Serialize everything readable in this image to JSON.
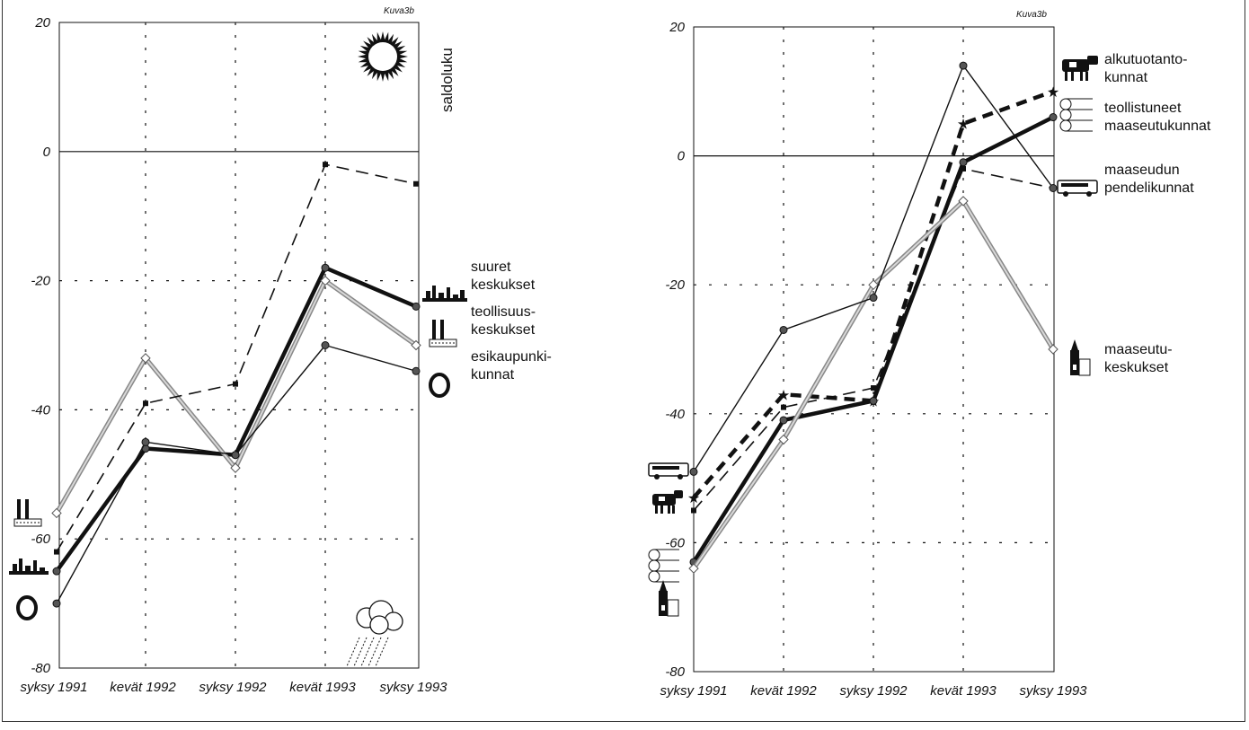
{
  "chart_data": [
    {
      "type": "line",
      "figure_tag": "Kuva3b",
      "ylabel": "saldoluku",
      "categories": [
        "syksy 1991",
        "kevät 1992",
        "syksy 1992",
        "kevät 1993",
        "syksy 1993"
      ],
      "ylim": [
        -80,
        20
      ],
      "yticks": [
        20,
        0,
        -20,
        -40,
        -60,
        -80
      ],
      "grid": true,
      "series": [
        {
          "name": "suuret keskukset",
          "values": [
            -65,
            -46,
            -47,
            -18,
            -24
          ],
          "style": "thick-black"
        },
        {
          "name": "teollisuuskeskukset",
          "values": [
            -56,
            -32,
            -49,
            -20,
            -30
          ],
          "style": "gray-double"
        },
        {
          "name": "esikaupunkikunnat",
          "values": [
            -70,
            -45,
            -47,
            -30,
            -34
          ],
          "style": "thin-black"
        },
        {
          "values": [
            -62,
            -39,
            -36,
            -2,
            -5
          ],
          "style": "dashed"
        }
      ],
      "labels": [
        {
          "lines": [
            "suuret",
            "keskukset"
          ]
        },
        {
          "lines": [
            "teollisuus-",
            "keskukset"
          ]
        },
        {
          "lines": [
            "esikaupunki-",
            "kunnat"
          ]
        }
      ]
    },
    {
      "type": "line",
      "figure_tag": "Kuva3b",
      "categories": [
        "syksy 1991",
        "kevät 1992",
        "syksy 1992",
        "kevät 1993",
        "syksy 1993"
      ],
      "ylim": [
        -80,
        20
      ],
      "yticks": [
        20,
        0,
        -20,
        -40,
        -60,
        -80
      ],
      "grid": true,
      "series": [
        {
          "name": "alkutuotantokunnat",
          "values": [
            -53,
            -37,
            -38,
            5,
            10
          ],
          "style": "thick-dashed"
        },
        {
          "name": "teollistuneet maaseutukunnat",
          "values": [
            -63,
            -41,
            -38,
            -1,
            6
          ],
          "style": "thick-black"
        },
        {
          "name": "maaseudun pendelikunnat",
          "values": [
            -55,
            -39,
            -36,
            -2,
            -5
          ],
          "style": "dashed"
        },
        {
          "name": "maaseutukeskukset",
          "values": [
            -64,
            -44,
            -20,
            -7,
            -30
          ],
          "style": "gray-double"
        },
        {
          "values": [
            -49,
            -27,
            -22,
            14,
            -5
          ],
          "style": "thin-black"
        }
      ],
      "labels": [
        {
          "lines": [
            "alkutuotanto-",
            "kunnat"
          ]
        },
        {
          "lines": [
            "teollistuneet",
            "maaseutukunnat"
          ]
        },
        {
          "lines": [
            "maaseudun",
            "pendelikunnat"
          ]
        },
        {
          "lines": [
            "maaseutu-",
            "keskukset"
          ]
        }
      ]
    }
  ]
}
